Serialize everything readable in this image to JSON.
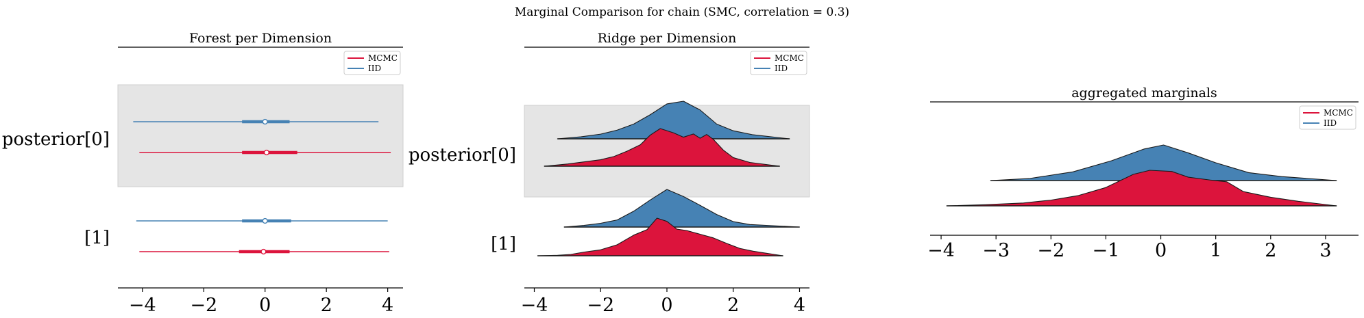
{
  "figure": {
    "suptitle": "Marginal Comparison for chain (SMC, correlation = 0.3)"
  },
  "colors": {
    "mcmc": "#dc143c",
    "iid": "#4682b4",
    "band": "#e5e5e5"
  },
  "chart_data": [
    {
      "type": "forest",
      "title": "Forest per Dimension",
      "legend": {
        "entries": [
          "MCMC",
          "IID"
        ],
        "loc": "upper right"
      },
      "xlim": [
        -4.8,
        4.5
      ],
      "xticks": [
        -4,
        -2,
        0,
        2,
        4
      ],
      "xtick_labels": [
        "−4",
        "−2",
        "0",
        "2",
        "4"
      ],
      "rows": [
        {
          "label": "posterior[0]",
          "shaded": true,
          "series": [
            {
              "name": "IID",
              "min": -4.3,
              "q25": -0.75,
              "median": 0.0,
              "q75": 0.8,
              "max": 3.7
            },
            {
              "name": "MCMC",
              "min": -4.1,
              "q25": -0.75,
              "median": 0.05,
              "q75": 1.05,
              "max": 4.1
            }
          ]
        },
        {
          "label": "[1]",
          "shaded": false,
          "series": [
            {
              "name": "IID",
              "min": -4.2,
              "q25": -0.75,
              "median": 0.0,
              "q75": 0.85,
              "max": 4.0
            },
            {
              "name": "MCMC",
              "min": -4.1,
              "q25": -0.85,
              "median": -0.05,
              "q75": 0.8,
              "max": 4.05
            }
          ]
        }
      ]
    },
    {
      "type": "ridge",
      "title": "Ridge per Dimension",
      "legend": {
        "entries": [
          "MCMC",
          "IID"
        ],
        "loc": "upper right"
      },
      "xlim": [
        -4.3,
        4.3
      ],
      "xticks": [
        -4,
        -2,
        0,
        2,
        4
      ],
      "xtick_labels": [
        "−4",
        "−2",
        "0",
        "2",
        "4"
      ],
      "rows": [
        {
          "label": "posterior[0]",
          "shaded": true,
          "series": [
            {
              "name": "IID",
              "x": [
                -3.3,
                -2.6,
                -2.0,
                -1.5,
                -1.0,
                -0.5,
                0.0,
                0.5,
                1.0,
                1.5,
                2.0,
                2.6,
                3.7
              ],
              "density": [
                0.0,
                0.03,
                0.07,
                0.13,
                0.22,
                0.36,
                0.52,
                0.56,
                0.43,
                0.22,
                0.12,
                0.06,
                0.0
              ]
            },
            {
              "name": "MCMC",
              "x": [
                -3.7,
                -3.0,
                -2.5,
                -2.0,
                -1.6,
                -1.2,
                -0.8,
                -0.5,
                -0.2,
                0.2,
                0.5,
                0.8,
                1.0,
                1.2,
                1.4,
                1.7,
                2.0,
                2.5,
                3.4
              ],
              "density": [
                0.0,
                0.04,
                0.08,
                0.12,
                0.18,
                0.28,
                0.4,
                0.58,
                0.7,
                0.62,
                0.54,
                0.6,
                0.52,
                0.59,
                0.5,
                0.3,
                0.16,
                0.07,
                0.0
              ]
            }
          ]
        },
        {
          "label": "[1]",
          "shaded": false,
          "series": [
            {
              "name": "IID",
              "x": [
                -3.1,
                -2.5,
                -2.0,
                -1.5,
                -1.0,
                -0.5,
                0.0,
                0.5,
                1.0,
                1.5,
                2.0,
                2.5,
                4.0
              ],
              "density": [
                0.0,
                0.04,
                0.09,
                0.17,
                0.38,
                0.65,
                0.9,
                0.73,
                0.52,
                0.3,
                0.13,
                0.06,
                0.0
              ]
            },
            {
              "name": "MCMC",
              "x": [
                -3.9,
                -3.3,
                -2.9,
                -2.5,
                -2.0,
                -1.5,
                -1.0,
                -0.6,
                -0.3,
                0.0,
                0.3,
                0.6,
                1.0,
                1.4,
                1.8,
                2.2,
                2.6,
                3.5
              ],
              "density": [
                0.0,
                0.01,
                0.03,
                0.08,
                0.13,
                0.24,
                0.45,
                0.57,
                0.82,
                0.75,
                0.58,
                0.55,
                0.47,
                0.39,
                0.27,
                0.16,
                0.1,
                0.0
              ]
            }
          ]
        }
      ]
    },
    {
      "type": "ridge",
      "title": "aggregated marginals",
      "legend": {
        "entries": [
          "MCMC",
          "IID"
        ],
        "loc": "upper right"
      },
      "xlim": [
        -4.2,
        3.6
      ],
      "xticks": [
        -4,
        -3,
        -2,
        -1,
        0,
        1,
        2,
        3
      ],
      "xtick_labels": [
        "−4",
        "−3",
        "−2",
        "−1",
        "0",
        "1",
        "2",
        "3"
      ],
      "series": [
        {
          "name": "IID",
          "x": [
            -3.1,
            -2.4,
            -1.6,
            -0.9,
            -0.3,
            0.05,
            0.5,
            1.0,
            1.6,
            2.2,
            3.2
          ],
          "density": [
            0.0,
            0.05,
            0.22,
            0.5,
            0.8,
            0.9,
            0.7,
            0.45,
            0.2,
            0.1,
            0.0
          ]
        },
        {
          "name": "MCMC",
          "x": [
            -3.9,
            -3.2,
            -2.5,
            -2.0,
            -1.5,
            -1.0,
            -0.5,
            -0.2,
            0.2,
            0.5,
            0.9,
            1.2,
            1.5,
            2.0,
            2.5,
            3.2
          ],
          "density": [
            0.0,
            0.02,
            0.05,
            0.1,
            0.18,
            0.32,
            0.55,
            0.62,
            0.6,
            0.5,
            0.45,
            0.42,
            0.25,
            0.15,
            0.08,
            0.0
          ]
        }
      ]
    }
  ]
}
